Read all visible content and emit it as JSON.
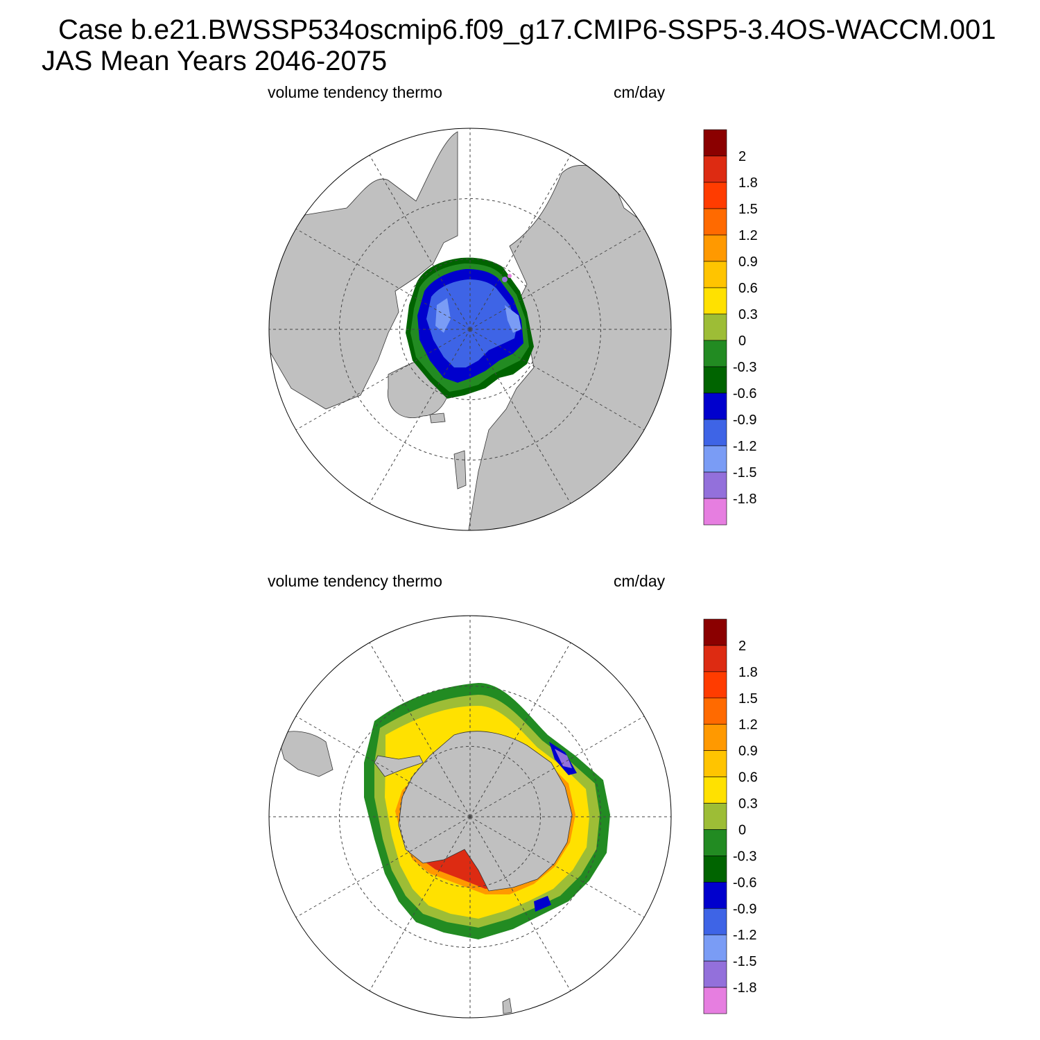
{
  "title": {
    "line1": "Case b.e21.BWSSP534oscmip6.f09_g17.CMIP6-SSP5-3.4OS-WACCM.001",
    "line2": "JAS Mean   Years 2046-2075"
  },
  "panels": [
    {
      "name": "north",
      "variable": "volume tendency thermo",
      "units": "cm/day"
    },
    {
      "name": "south",
      "variable": "volume tendency thermo",
      "units": "cm/day"
    }
  ],
  "colorbar": {
    "labels": [
      "2",
      "1.8",
      "1.5",
      "1.2",
      "0.9",
      "0.6",
      "0.3",
      "0",
      "-0.3",
      "-0.6",
      "-0.9",
      "-1.2",
      "-1.5",
      "-1.8"
    ],
    "colors": [
      "#8b0000",
      "#dd2b12",
      "#ff3c00",
      "#ff6a00",
      "#ff9900",
      "#ffc400",
      "#ffe100",
      "#9dbd36",
      "#228b22",
      "#006400",
      "#0000cd",
      "#3e64e6",
      "#7a9cf5",
      "#9370db",
      "#e67ee0"
    ]
  },
  "map_colors": {
    "land": "#c0c0c0",
    "ocean": "#ffffff",
    "grid": "#444444"
  }
}
